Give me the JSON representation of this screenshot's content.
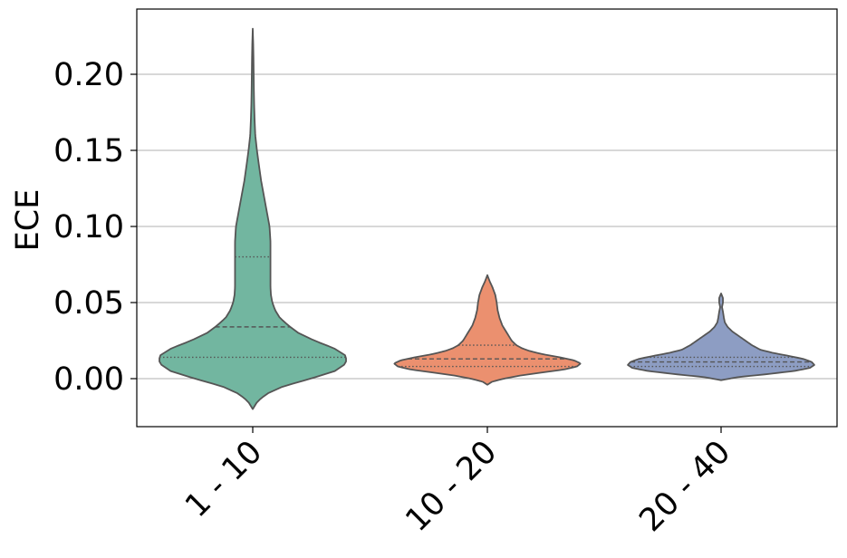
{
  "chart_data": {
    "type": "violin",
    "title": "",
    "xlabel": "",
    "ylabel": "ECE",
    "ylim": [
      -0.033,
      0.242
    ],
    "yticks": [
      0.0,
      0.05,
      0.1,
      0.15,
      0.2
    ],
    "ytick_labels": [
      "0.00",
      "0.05",
      "0.10",
      "0.15",
      "0.20"
    ],
    "grid": "y",
    "categories": [
      "1 - 10",
      "10 - 20",
      "20 - 40"
    ],
    "colors": [
      "#72b6a0",
      "#eb906f",
      "#8d9dc3"
    ],
    "outline_color": "#555555",
    "violins": [
      {
        "category": "1 - 10",
        "min": -0.02,
        "max": 0.23,
        "quartiles": [
          0.014,
          0.034,
          0.08
        ],
        "profile": [
          [
            -0.02,
            0.0
          ],
          [
            -0.015,
            0.05
          ],
          [
            -0.01,
            0.15
          ],
          [
            -0.005,
            0.33
          ],
          [
            0.0,
            0.62
          ],
          [
            0.005,
            0.88
          ],
          [
            0.01,
            1.0
          ],
          [
            0.015,
            1.0
          ],
          [
            0.02,
            0.87
          ],
          [
            0.025,
            0.66
          ],
          [
            0.03,
            0.49
          ],
          [
            0.035,
            0.38
          ],
          [
            0.04,
            0.29
          ],
          [
            0.045,
            0.24
          ],
          [
            0.05,
            0.21
          ],
          [
            0.055,
            0.195
          ],
          [
            0.06,
            0.19
          ],
          [
            0.07,
            0.19
          ],
          [
            0.08,
            0.19
          ],
          [
            0.09,
            0.19
          ],
          [
            0.1,
            0.18
          ],
          [
            0.11,
            0.15
          ],
          [
            0.12,
            0.12
          ],
          [
            0.13,
            0.09
          ],
          [
            0.14,
            0.067
          ],
          [
            0.15,
            0.045
          ],
          [
            0.16,
            0.027
          ],
          [
            0.17,
            0.02
          ],
          [
            0.18,
            0.015
          ],
          [
            0.19,
            0.012
          ],
          [
            0.2,
            0.01
          ],
          [
            0.21,
            0.008
          ],
          [
            0.22,
            0.005
          ],
          [
            0.23,
            0.0
          ]
        ]
      },
      {
        "category": "10 - 20",
        "min": -0.004,
        "max": 0.068,
        "quartiles": [
          0.008,
          0.013,
          0.022
        ],
        "profile": [
          [
            -0.004,
            0.0
          ],
          [
            -0.002,
            0.05
          ],
          [
            0.0,
            0.18
          ],
          [
            0.002,
            0.35
          ],
          [
            0.004,
            0.58
          ],
          [
            0.006,
            0.82
          ],
          [
            0.008,
            0.96
          ],
          [
            0.01,
            1.0
          ],
          [
            0.012,
            0.93
          ],
          [
            0.014,
            0.78
          ],
          [
            0.016,
            0.6
          ],
          [
            0.018,
            0.46
          ],
          [
            0.02,
            0.37
          ],
          [
            0.022,
            0.31
          ],
          [
            0.025,
            0.26
          ],
          [
            0.03,
            0.21
          ],
          [
            0.035,
            0.16
          ],
          [
            0.04,
            0.13
          ],
          [
            0.045,
            0.11
          ],
          [
            0.05,
            0.1
          ],
          [
            0.055,
            0.085
          ],
          [
            0.06,
            0.055
          ],
          [
            0.064,
            0.025
          ],
          [
            0.068,
            0.0
          ]
        ]
      },
      {
        "category": "20 - 40",
        "min": -0.001,
        "max": 0.056,
        "quartiles": [
          0.008,
          0.011,
          0.014
        ],
        "profile": [
          [
            -0.001,
            0.0
          ],
          [
            0.001,
            0.18
          ],
          [
            0.003,
            0.5
          ],
          [
            0.005,
            0.78
          ],
          [
            0.007,
            0.95
          ],
          [
            0.009,
            1.0
          ],
          [
            0.011,
            0.97
          ],
          [
            0.013,
            0.88
          ],
          [
            0.015,
            0.72
          ],
          [
            0.017,
            0.55
          ],
          [
            0.019,
            0.42
          ],
          [
            0.022,
            0.33
          ],
          [
            0.025,
            0.26
          ],
          [
            0.028,
            0.19
          ],
          [
            0.031,
            0.12
          ],
          [
            0.034,
            0.07
          ],
          [
            0.037,
            0.04
          ],
          [
            0.04,
            0.03
          ],
          [
            0.044,
            0.02
          ],
          [
            0.047,
            0.01
          ],
          [
            0.05,
            0.02
          ],
          [
            0.053,
            0.02
          ],
          [
            0.056,
            0.0
          ]
        ]
      }
    ]
  }
}
